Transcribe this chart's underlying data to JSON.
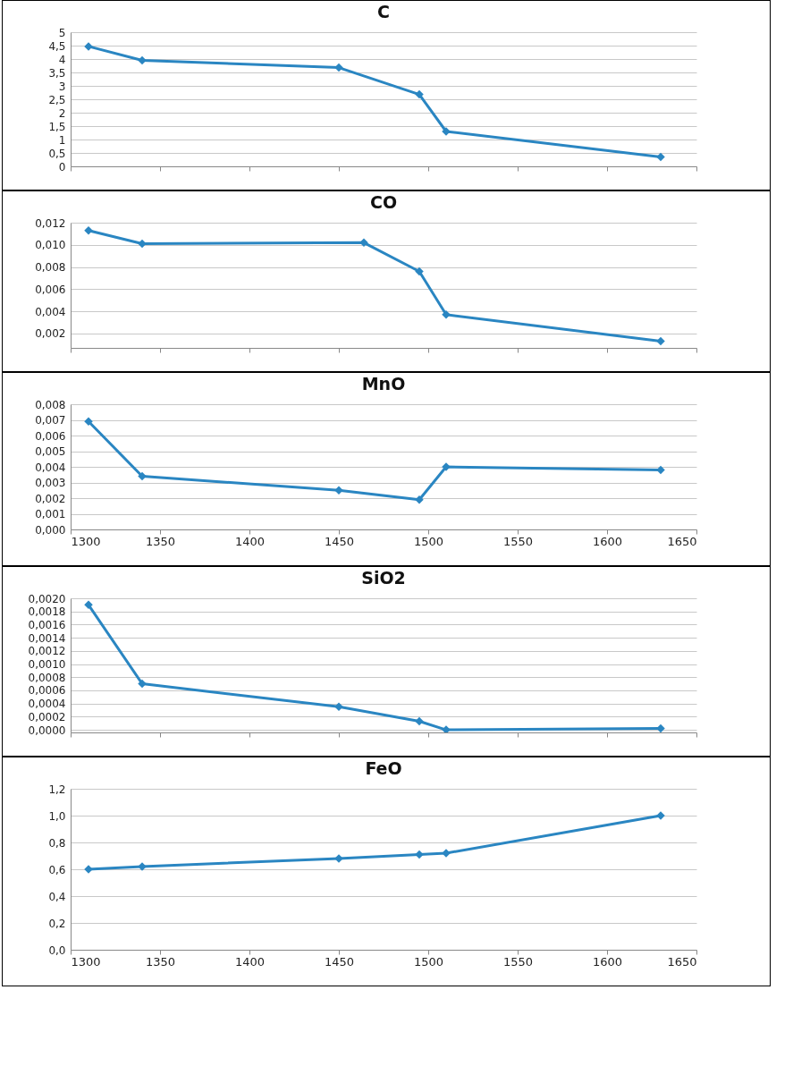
{
  "chart_data": [
    {
      "type": "line",
      "title": "C",
      "x": [
        1310,
        1340,
        1450,
        1495,
        1510,
        1630
      ],
      "values": [
        4.47,
        3.95,
        3.68,
        2.68,
        1.3,
        0.35
      ],
      "color": "#2a86c2",
      "marker": "diamond",
      "grid": "y",
      "tick_labels": "y",
      "xlim": [
        1300,
        1650
      ],
      "xticks": [
        1300,
        1350,
        1400,
        1450,
        1500,
        1550,
        1600,
        1650
      ],
      "ylim": [
        0,
        5
      ],
      "yticks": [
        0,
        {
          "value": 0.5,
          "label": "0,5"
        },
        1,
        {
          "value": 1.5,
          "label": "1,5"
        },
        2,
        {
          "value": 2.5,
          "label": "2,5"
        },
        3,
        {
          "value": 3.5,
          "label": "3,5"
        },
        4,
        {
          "value": 4.5,
          "label": "4,5"
        },
        5
      ]
    },
    {
      "type": "line",
      "title": "CO",
      "x": [
        1310,
        1340,
        1464,
        1495,
        1510,
        1630
      ],
      "values": [
        0.0113,
        0.0101,
        0.0102,
        0.0076,
        0.0037,
        0.0013
      ],
      "color": "#2a86c2",
      "marker": "diamond",
      "grid": "y",
      "tick_labels": "y",
      "xlim": [
        1300,
        1650
      ],
      "xticks": [
        1300,
        1350,
        1400,
        1450,
        1500,
        1550,
        1600,
        1650
      ],
      "ylim": [
        0.0007,
        0.012
      ],
      "yticks": [
        {
          "value": 0.002,
          "label": "0,002"
        },
        {
          "value": 0.004,
          "label": "0,004"
        },
        {
          "value": 0.006,
          "label": "0,006"
        },
        {
          "value": 0.008,
          "label": "0,008"
        },
        {
          "value": 0.01,
          "label": "0,010"
        },
        {
          "value": 0.012,
          "label": "0,012"
        }
      ]
    },
    {
      "type": "line",
      "title": "MnO",
      "x": [
        1310,
        1340,
        1450,
        1495,
        1510,
        1630
      ],
      "values": [
        0.0069,
        0.0034,
        0.0025,
        0.0019,
        0.004,
        0.0038
      ],
      "color": "#2a86c2",
      "marker": "diamond",
      "grid": "y",
      "xlim": [
        1300,
        1650
      ],
      "xticks": [
        1300,
        1350,
        1400,
        1450,
        1500,
        1550,
        1600,
        1650
      ],
      "ylim": [
        0,
        0.008
      ],
      "yticks": [
        {
          "value": 0,
          "label": "0,000"
        },
        {
          "value": 0.001,
          "label": "0,001"
        },
        {
          "value": 0.002,
          "label": "0,002"
        },
        {
          "value": 0.003,
          "label": "0,003"
        },
        {
          "value": 0.004,
          "label": "0,004"
        },
        {
          "value": 0.005,
          "label": "0,005"
        },
        {
          "value": 0.006,
          "label": "0,006"
        },
        {
          "value": 0.007,
          "label": "0,007"
        },
        {
          "value": 0.008,
          "label": "0,008"
        }
      ]
    },
    {
      "type": "line",
      "title": "SiO2",
      "x": [
        1310,
        1340,
        1450,
        1495,
        1510,
        1630
      ],
      "values": [
        0.0019,
        0.0007,
        0.00035,
        0.00013,
        0.0,
        2e-05
      ],
      "color": "#2a86c2",
      "marker": "diamond",
      "grid": "y",
      "tick_labels": "y",
      "xlim": [
        1300,
        1650
      ],
      "xticks": [
        1300,
        1350,
        1400,
        1450,
        1500,
        1550,
        1600,
        1650
      ],
      "ylim": [
        -4e-05,
        0.002
      ],
      "yticks": [
        {
          "value": 0,
          "label": "0,0000"
        },
        {
          "value": 0.0002,
          "label": "0,0002"
        },
        {
          "value": 0.0004,
          "label": "0,0004"
        },
        {
          "value": 0.0006,
          "label": "0,0006"
        },
        {
          "value": 0.0008,
          "label": "0,0008"
        },
        {
          "value": 0.001,
          "label": "0,0010"
        },
        {
          "value": 0.0012,
          "label": "0,0012"
        },
        {
          "value": 0.0014,
          "label": "0,0014"
        },
        {
          "value": 0.0016,
          "label": "0,0016"
        },
        {
          "value": 0.0018,
          "label": "0,0018"
        },
        {
          "value": 0.002,
          "label": "0,0020"
        }
      ]
    },
    {
      "type": "line",
      "title": "FeO",
      "x": [
        1310,
        1340,
        1450,
        1495,
        1510,
        1630
      ],
      "values": [
        0.6,
        0.62,
        0.68,
        0.71,
        0.72,
        1.0
      ],
      "color": "#2a86c2",
      "marker": "diamond",
      "grid": "y",
      "xlim": [
        1300,
        1650
      ],
      "xticks": [
        1300,
        1350,
        1400,
        1450,
        1500,
        1550,
        1600,
        1650
      ],
      "ylim": [
        0,
        1.2
      ],
      "yticks": [
        {
          "value": 0,
          "label": "0,0"
        },
        {
          "value": 0.2,
          "label": "0,2"
        },
        {
          "value": 0.4,
          "label": "0,4"
        },
        {
          "value": 0.6,
          "label": "0,6"
        },
        {
          "value": 0.8,
          "label": "0,8"
        },
        {
          "value": 1.0,
          "label": "1,0"
        },
        {
          "value": 1.2,
          "label": "1,2"
        }
      ]
    }
  ]
}
